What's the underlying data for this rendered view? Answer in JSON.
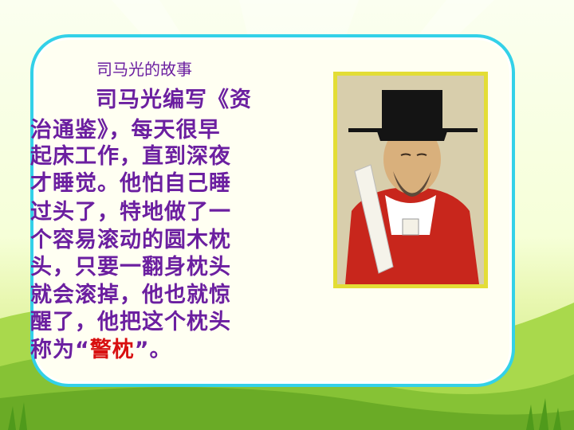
{
  "slide": {
    "subtitle": "司马光的故事",
    "lines": [
      "司马光编写《资",
      "治通鉴》，每天很早",
      "起床工作，直到深夜",
      "才睡觉。他怕自己睡",
      "过头了，特地做了一",
      "个容易滚动的圆木枕",
      "头，只要一翻身枕头",
      "就会滚掉，他也就惊",
      "醒了，他把这个枕头"
    ],
    "last_line": {
      "before": "称为“",
      "highlight": "警枕",
      "after": "”。"
    },
    "portrait_alt": "司马光像"
  },
  "colors": {
    "text": "#6b1fa0",
    "highlight": "#d81010",
    "card_border": "#33d1e8",
    "frame": "#e3dd36"
  }
}
